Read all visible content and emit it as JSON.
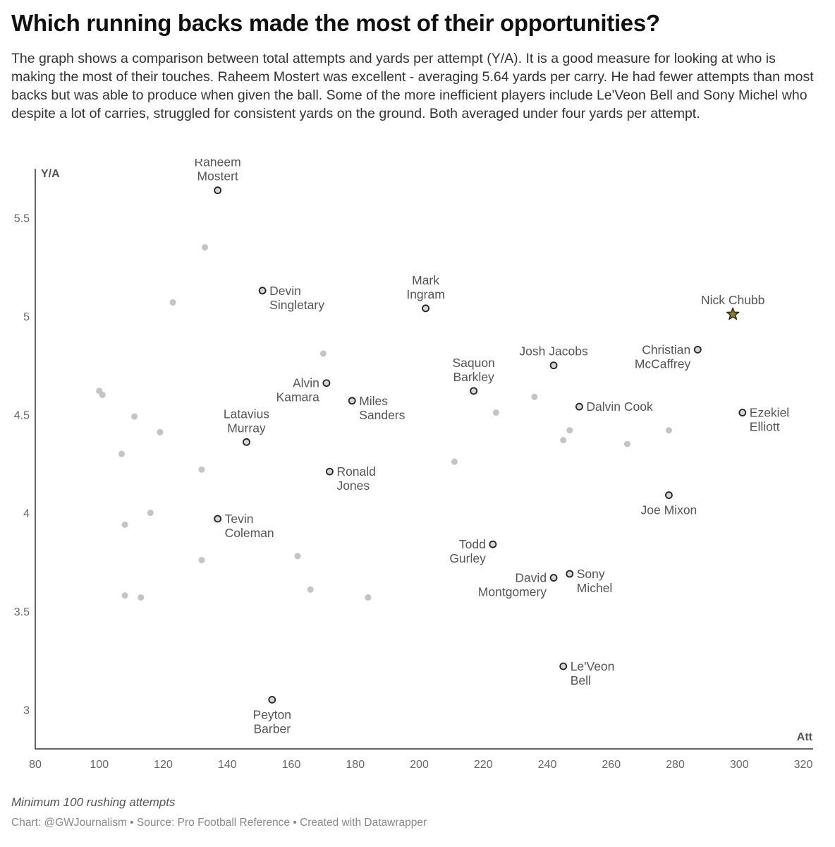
{
  "title": "Which running backs made the most of their opportunities?",
  "description": "The graph shows a comparison between total attempts and yards per attempt (Y/A). It is a good measure for looking at who is making the most of their touches. Raheem Mostert was excellent - averaging 5.64 yards per carry. He had fewer attempts than most backs but was able to produce when given the ball. Some of the more inefficient players include Le'Veon Bell and Sony Michel who despite a lot of carries, struggled for consistent yards on the ground. Both averaged under four yards per attempt.",
  "note": "Minimum 100 rushing attempts",
  "credit": "Chart: @GWJournalism • Source: Pro Football Reference • Created with Datawrapper",
  "chart_data": {
    "type": "scatter",
    "xlabel": "Att",
    "ylabel": "Y/A",
    "xlim": [
      80,
      320
    ],
    "ylim": [
      2.8,
      5.75
    ],
    "xticks": [
      80,
      100,
      120,
      140,
      160,
      180,
      200,
      220,
      240,
      260,
      280,
      300,
      320
    ],
    "yticks": [
      3,
      3.5,
      4,
      4.5,
      5,
      5.5
    ],
    "colors": {
      "background_point": "#c4c4c4",
      "highlight_fill": "#d6d6d6",
      "highlight_stroke": "#222222",
      "star_fill": "#8a7a2a",
      "axis": "#333333",
      "label": "#555555"
    },
    "highlighted": [
      {
        "name": "Raheem Mostert",
        "lines": [
          "Raheem",
          "Mostert"
        ],
        "x": 137,
        "y": 5.64,
        "label_pos": "top"
      },
      {
        "name": "Devin Singletary",
        "lines": [
          "Devin",
          "Singletary"
        ],
        "x": 151,
        "y": 5.13,
        "label_pos": "right"
      },
      {
        "name": "Mark Ingram",
        "lines": [
          "Mark",
          "Ingram"
        ],
        "x": 202,
        "y": 5.04,
        "label_pos": "top"
      },
      {
        "name": "Nick Chubb",
        "lines": [
          "Nick Chubb"
        ],
        "x": 298,
        "y": 5.01,
        "label_pos": "top",
        "marker": "star"
      },
      {
        "name": "Christian McCaffrey",
        "lines": [
          "Christian",
          "McCaffrey"
        ],
        "x": 287,
        "y": 4.83,
        "label_pos": "left"
      },
      {
        "name": "Josh Jacobs",
        "lines": [
          "Josh Jacobs"
        ],
        "x": 242,
        "y": 4.75,
        "label_pos": "top"
      },
      {
        "name": "Alvin Kamara",
        "lines": [
          "Alvin",
          "Kamara"
        ],
        "x": 171,
        "y": 4.66,
        "label_pos": "left"
      },
      {
        "name": "Saquon Barkley",
        "lines": [
          "Saquon",
          "Barkley"
        ],
        "x": 217,
        "y": 4.62,
        "label_pos": "top"
      },
      {
        "name": "Miles Sanders",
        "lines": [
          "Miles",
          "Sanders"
        ],
        "x": 179,
        "y": 4.57,
        "label_pos": "right"
      },
      {
        "name": "Dalvin Cook",
        "lines": [
          "Dalvin Cook"
        ],
        "x": 250,
        "y": 4.54,
        "label_pos": "right"
      },
      {
        "name": "Ezekiel Elliott",
        "lines": [
          "Ezekiel",
          "Elliott"
        ],
        "x": 301,
        "y": 4.51,
        "label_pos": "right"
      },
      {
        "name": "Latavius Murray",
        "lines": [
          "Latavius",
          "Murray"
        ],
        "x": 146,
        "y": 4.36,
        "label_pos": "top"
      },
      {
        "name": "Ronald Jones",
        "lines": [
          "Ronald",
          "Jones"
        ],
        "x": 172,
        "y": 4.21,
        "label_pos": "right"
      },
      {
        "name": "Joe Mixon",
        "lines": [
          "Joe Mixon"
        ],
        "x": 278,
        "y": 4.09,
        "label_pos": "bottom"
      },
      {
        "name": "Tevin Coleman",
        "lines": [
          "Tevin",
          "Coleman"
        ],
        "x": 137,
        "y": 3.97,
        "label_pos": "right"
      },
      {
        "name": "Todd Gurley",
        "lines": [
          "Todd",
          "Gurley"
        ],
        "x": 223,
        "y": 3.84,
        "label_pos": "left"
      },
      {
        "name": "Sony Michel",
        "lines": [
          "Sony",
          "Michel"
        ],
        "x": 247,
        "y": 3.69,
        "label_pos": "right"
      },
      {
        "name": "David Montgomery",
        "lines": [
          "David",
          "Montgomery"
        ],
        "x": 242,
        "y": 3.67,
        "label_pos": "left"
      },
      {
        "name": "Le'Veon Bell",
        "lines": [
          "Le'Veon",
          "Bell"
        ],
        "x": 245,
        "y": 3.22,
        "label_pos": "right"
      },
      {
        "name": "Peyton Barber",
        "lines": [
          "Peyton",
          "Barber"
        ],
        "x": 154,
        "y": 3.05,
        "label_pos": "bottom"
      }
    ],
    "background": [
      {
        "x": 133,
        "y": 5.35
      },
      {
        "x": 123,
        "y": 5.07
      },
      {
        "x": 170,
        "y": 4.81
      },
      {
        "x": 100,
        "y": 4.62
      },
      {
        "x": 101,
        "y": 4.6
      },
      {
        "x": 111,
        "y": 4.49
      },
      {
        "x": 119,
        "y": 4.41
      },
      {
        "x": 107,
        "y": 4.3
      },
      {
        "x": 132,
        "y": 4.22
      },
      {
        "x": 236,
        "y": 4.59
      },
      {
        "x": 224,
        "y": 4.51
      },
      {
        "x": 247,
        "y": 4.42
      },
      {
        "x": 245,
        "y": 4.37
      },
      {
        "x": 278,
        "y": 4.42
      },
      {
        "x": 265,
        "y": 4.35
      },
      {
        "x": 211,
        "y": 4.26
      },
      {
        "x": 116,
        "y": 4.0
      },
      {
        "x": 108,
        "y": 3.94
      },
      {
        "x": 132,
        "y": 3.76
      },
      {
        "x": 162,
        "y": 3.78
      },
      {
        "x": 166,
        "y": 3.61
      },
      {
        "x": 108,
        "y": 3.58
      },
      {
        "x": 113,
        "y": 3.57
      },
      {
        "x": 184,
        "y": 3.57
      }
    ]
  }
}
